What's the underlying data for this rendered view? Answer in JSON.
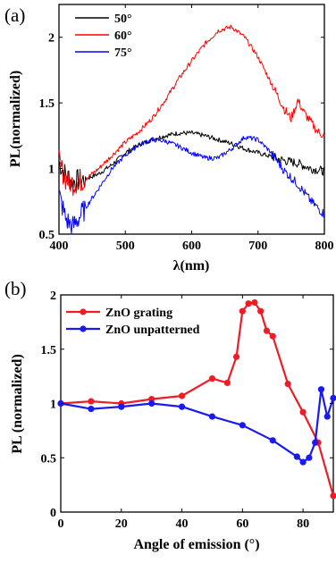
{
  "chart_data": [
    {
      "panel_label": "(a)",
      "type": "line",
      "xlabel": "λ(nm)",
      "ylabel": "PL(normalized)",
      "xlim": [
        400,
        800
      ],
      "ylim": [
        0.5,
        2.25
      ],
      "xticks": [
        "400",
        "500",
        "600",
        "700",
        "800"
      ],
      "yticks": [
        "0.5",
        "1",
        "1.5",
        "2"
      ],
      "legend_position": "top-left",
      "grid": false,
      "series": [
        {
          "name": "50°",
          "color": "#000000",
          "x": [
            400,
            410,
            420,
            440,
            460,
            480,
            500,
            520,
            540,
            560,
            580,
            600,
            620,
            640,
            660,
            680,
            700,
            720,
            740,
            760,
            780,
            800
          ],
          "y": [
            1.05,
            0.95,
            0.9,
            0.92,
            0.96,
            1.03,
            1.12,
            1.18,
            1.22,
            1.25,
            1.27,
            1.27,
            1.25,
            1.22,
            1.19,
            1.15,
            1.12,
            1.09,
            1.06,
            1.04,
            1.0,
            0.98
          ]
        },
        {
          "name": "60°",
          "color": "#ff0000",
          "x": [
            400,
            410,
            420,
            440,
            460,
            480,
            500,
            520,
            540,
            560,
            580,
            600,
            620,
            640,
            660,
            680,
            700,
            720,
            740,
            750,
            760,
            770,
            780,
            790,
            800
          ],
          "y": [
            1.05,
            0.92,
            0.88,
            0.92,
            1.0,
            1.1,
            1.2,
            1.28,
            1.38,
            1.52,
            1.68,
            1.82,
            1.95,
            2.05,
            2.08,
            2.0,
            1.85,
            1.65,
            1.45,
            1.38,
            1.52,
            1.42,
            1.35,
            1.28,
            1.25
          ]
        },
        {
          "name": "75°",
          "color": "#0000ff",
          "x": [
            400,
            410,
            420,
            440,
            460,
            480,
            500,
            520,
            540,
            560,
            580,
            600,
            620,
            640,
            660,
            680,
            700,
            720,
            740,
            760,
            780,
            800
          ],
          "y": [
            0.8,
            0.62,
            0.55,
            0.7,
            0.85,
            1.0,
            1.1,
            1.18,
            1.22,
            1.21,
            1.17,
            1.12,
            1.08,
            1.08,
            1.15,
            1.24,
            1.22,
            1.12,
            0.98,
            0.88,
            0.75,
            0.65
          ]
        }
      ]
    },
    {
      "panel_label": "(b)",
      "type": "line",
      "xlabel": "Angle of emission (°)",
      "ylabel": "PL (normalized)",
      "xlim": [
        0,
        90
      ],
      "ylim": [
        0,
        2
      ],
      "xticks": [
        "0",
        "20",
        "40",
        "60",
        "80"
      ],
      "yticks": [
        "0",
        "0.5",
        "1",
        "1.5",
        "2"
      ],
      "legend_position": "top-left",
      "grid": false,
      "series": [
        {
          "name": "ZnO grating",
          "color": "#ee1c25",
          "x": [
            0,
            10,
            20,
            30,
            40,
            50,
            55,
            58,
            60,
            62,
            64,
            66,
            68,
            70,
            75,
            80,
            85,
            90
          ],
          "y": [
            1.0,
            1.02,
            1.0,
            1.04,
            1.07,
            1.23,
            1.19,
            1.43,
            1.85,
            1.92,
            1.93,
            1.85,
            1.67,
            1.62,
            1.18,
            0.92,
            0.64,
            0.15
          ]
        },
        {
          "name": "ZnO unpatterned",
          "color": "#1a1aee",
          "x": [
            0,
            10,
            20,
            30,
            40,
            50,
            60,
            70,
            78,
            80,
            82,
            84,
            86,
            88,
            90
          ],
          "y": [
            1.0,
            0.95,
            0.97,
            1.0,
            0.97,
            0.88,
            0.8,
            0.66,
            0.51,
            0.46,
            0.5,
            0.64,
            1.13,
            0.88,
            1.05
          ]
        }
      ]
    }
  ]
}
